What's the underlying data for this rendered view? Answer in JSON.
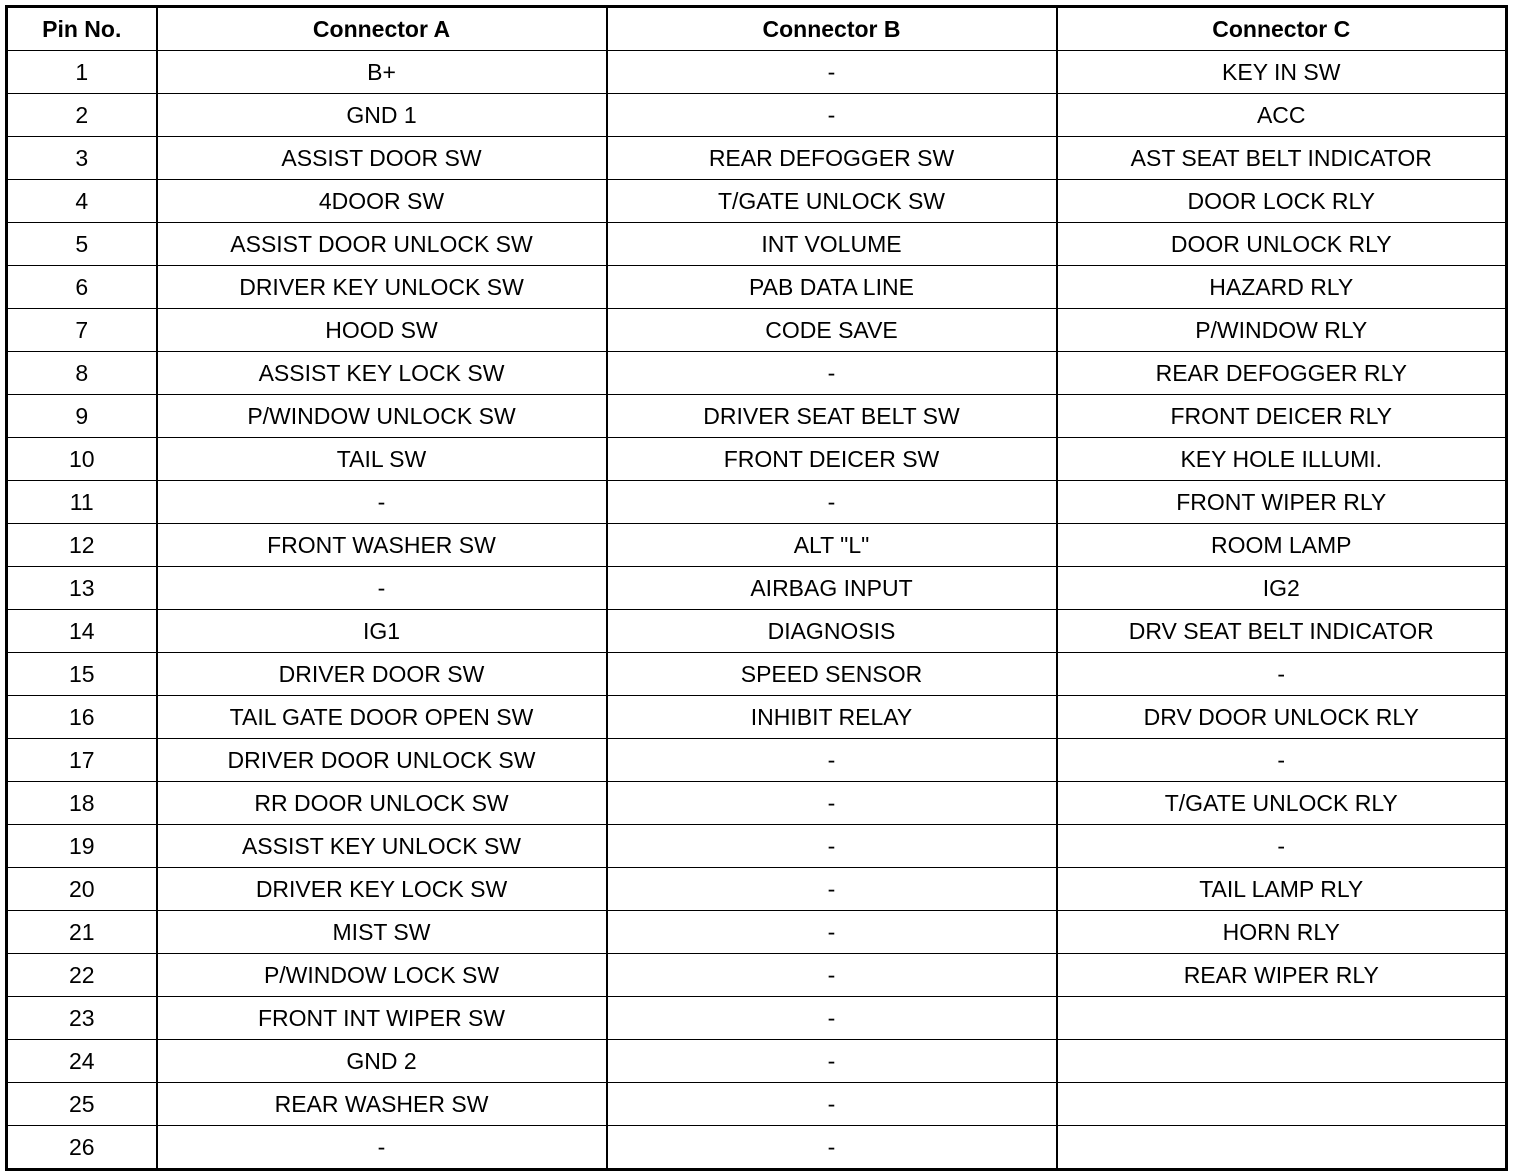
{
  "headers": [
    "Pin No.",
    "Connector A",
    "Connector B",
    "Connector C"
  ],
  "rows": [
    [
      "1",
      "B+",
      "-",
      "KEY IN SW"
    ],
    [
      "2",
      "GND 1",
      "-",
      "ACC"
    ],
    [
      "3",
      "ASSIST DOOR SW",
      "REAR DEFOGGER SW",
      "AST SEAT BELT INDICATOR"
    ],
    [
      "4",
      "4DOOR SW",
      "T/GATE UNLOCK SW",
      "DOOR LOCK RLY"
    ],
    [
      "5",
      "ASSIST DOOR UNLOCK SW",
      "INT VOLUME",
      "DOOR UNLOCK RLY"
    ],
    [
      "6",
      "DRIVER KEY UNLOCK SW",
      "PAB DATA LINE",
      "HAZARD RLY"
    ],
    [
      "7",
      "HOOD SW",
      "CODE SAVE",
      "P/WINDOW RLY"
    ],
    [
      "8",
      "ASSIST KEY LOCK SW",
      "-",
      "REAR DEFOGGER RLY"
    ],
    [
      "9",
      "P/WINDOW UNLOCK SW",
      "DRIVER SEAT BELT SW",
      "FRONT DEICER RLY"
    ],
    [
      "10",
      "TAIL SW",
      "FRONT DEICER SW",
      "KEY HOLE ILLUMI."
    ],
    [
      "11",
      "-",
      "-",
      "FRONT WIPER RLY"
    ],
    [
      "12",
      "FRONT WASHER SW",
      "ALT \"L\"",
      "ROOM LAMP"
    ],
    [
      "13",
      "-",
      "AIRBAG INPUT",
      "IG2"
    ],
    [
      "14",
      "IG1",
      "DIAGNOSIS",
      "DRV SEAT BELT INDICATOR"
    ],
    [
      "15",
      "DRIVER DOOR SW",
      "SPEED SENSOR",
      "-"
    ],
    [
      "16",
      "TAIL GATE DOOR OPEN SW",
      "INHIBIT RELAY",
      "DRV DOOR UNLOCK RLY"
    ],
    [
      "17",
      "DRIVER DOOR UNLOCK SW",
      "-",
      "-"
    ],
    [
      "18",
      "RR DOOR UNLOCK SW",
      "-",
      "T/GATE UNLOCK RLY"
    ],
    [
      "19",
      "ASSIST KEY UNLOCK SW",
      "-",
      "-"
    ],
    [
      "20",
      "DRIVER KEY LOCK SW",
      "-",
      "TAIL LAMP RLY"
    ],
    [
      "21",
      "MIST SW",
      "-",
      "HORN RLY"
    ],
    [
      "22",
      "P/WINDOW LOCK SW",
      "-",
      "REAR WIPER RLY"
    ],
    [
      "23",
      "FRONT INT WIPER SW",
      "-",
      ""
    ],
    [
      "24",
      "GND 2",
      "-",
      ""
    ],
    [
      "25",
      "REAR WASHER SW",
      "-",
      ""
    ],
    [
      "26",
      "-",
      "-",
      ""
    ]
  ]
}
